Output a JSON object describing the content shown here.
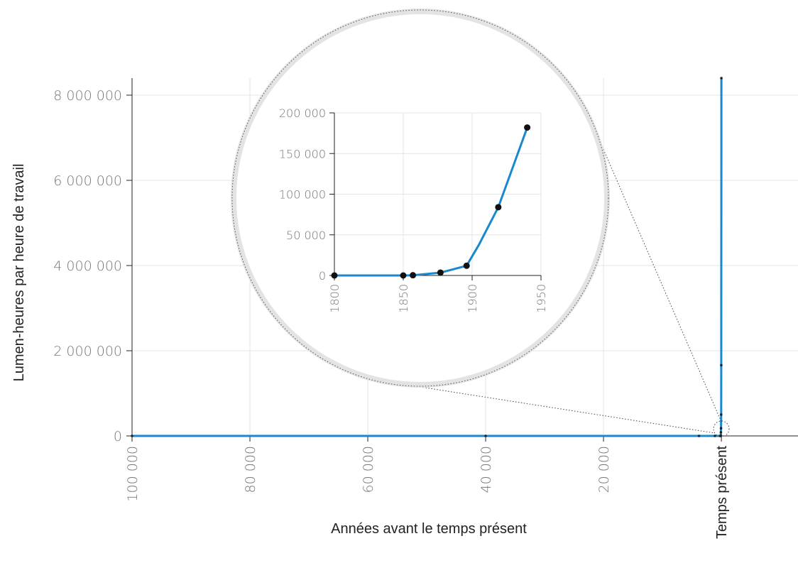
{
  "chart_data": [
    {
      "type": "line",
      "title": "",
      "xlabel": "Années avant le temps présent",
      "ylabel": "Lumen-heures par heure de travail",
      "x_ticks": [
        "100 000",
        "80 000",
        "60 000",
        "40 000",
        "20 000",
        "Temps présent"
      ],
      "x_tick_values": [
        100000,
        80000,
        60000,
        40000,
        20000,
        0
      ],
      "y_ticks": [
        "0",
        "2 000 000",
        "4 000 000",
        "6 000 000",
        "8 000 000"
      ],
      "y_tick_values": [
        0,
        2000000,
        4000000,
        6000000,
        8000000
      ],
      "xlim": [
        100000,
        -13000
      ],
      "ylim": [
        0,
        8400000
      ],
      "x_reversed": true,
      "grid": true,
      "series": [
        {
          "x": [
            100000,
            40000,
            3800,
            1100,
            230,
            200,
            150,
            125,
            100,
            80,
            60,
            40,
            20,
            0
          ],
          "y": [
            0,
            0,
            0,
            0,
            0,
            0,
            0,
            0,
            10000,
            85000,
            180000,
            500000,
            1660000,
            8400000
          ],
          "color": "#1a88cc"
        }
      ]
    },
    {
      "type": "line",
      "title": "",
      "x_ticks": [
        "1800",
        "1850",
        "1900",
        "1950"
      ],
      "x_tick_values": [
        1800,
        1850,
        1900,
        1950
      ],
      "y_ticks": [
        "0",
        "50 000",
        "100 000",
        "150 000",
        "200 000"
      ],
      "y_tick_values": [
        0,
        50000,
        100000,
        150000,
        200000
      ],
      "xlim": [
        1800,
        1950
      ],
      "ylim": [
        0,
        200000
      ],
      "grid": true,
      "series": [
        {
          "x": [
            1800,
            1850,
            1857,
            1877,
            1896,
            1905,
            1919,
            1940
          ],
          "y": [
            0,
            0,
            300,
            3500,
            12000,
            38000,
            84000,
            182000
          ],
          "markers": [
            true,
            true,
            true,
            true,
            true,
            false,
            true,
            true
          ],
          "color": "#1a88cc"
        }
      ]
    }
  ]
}
